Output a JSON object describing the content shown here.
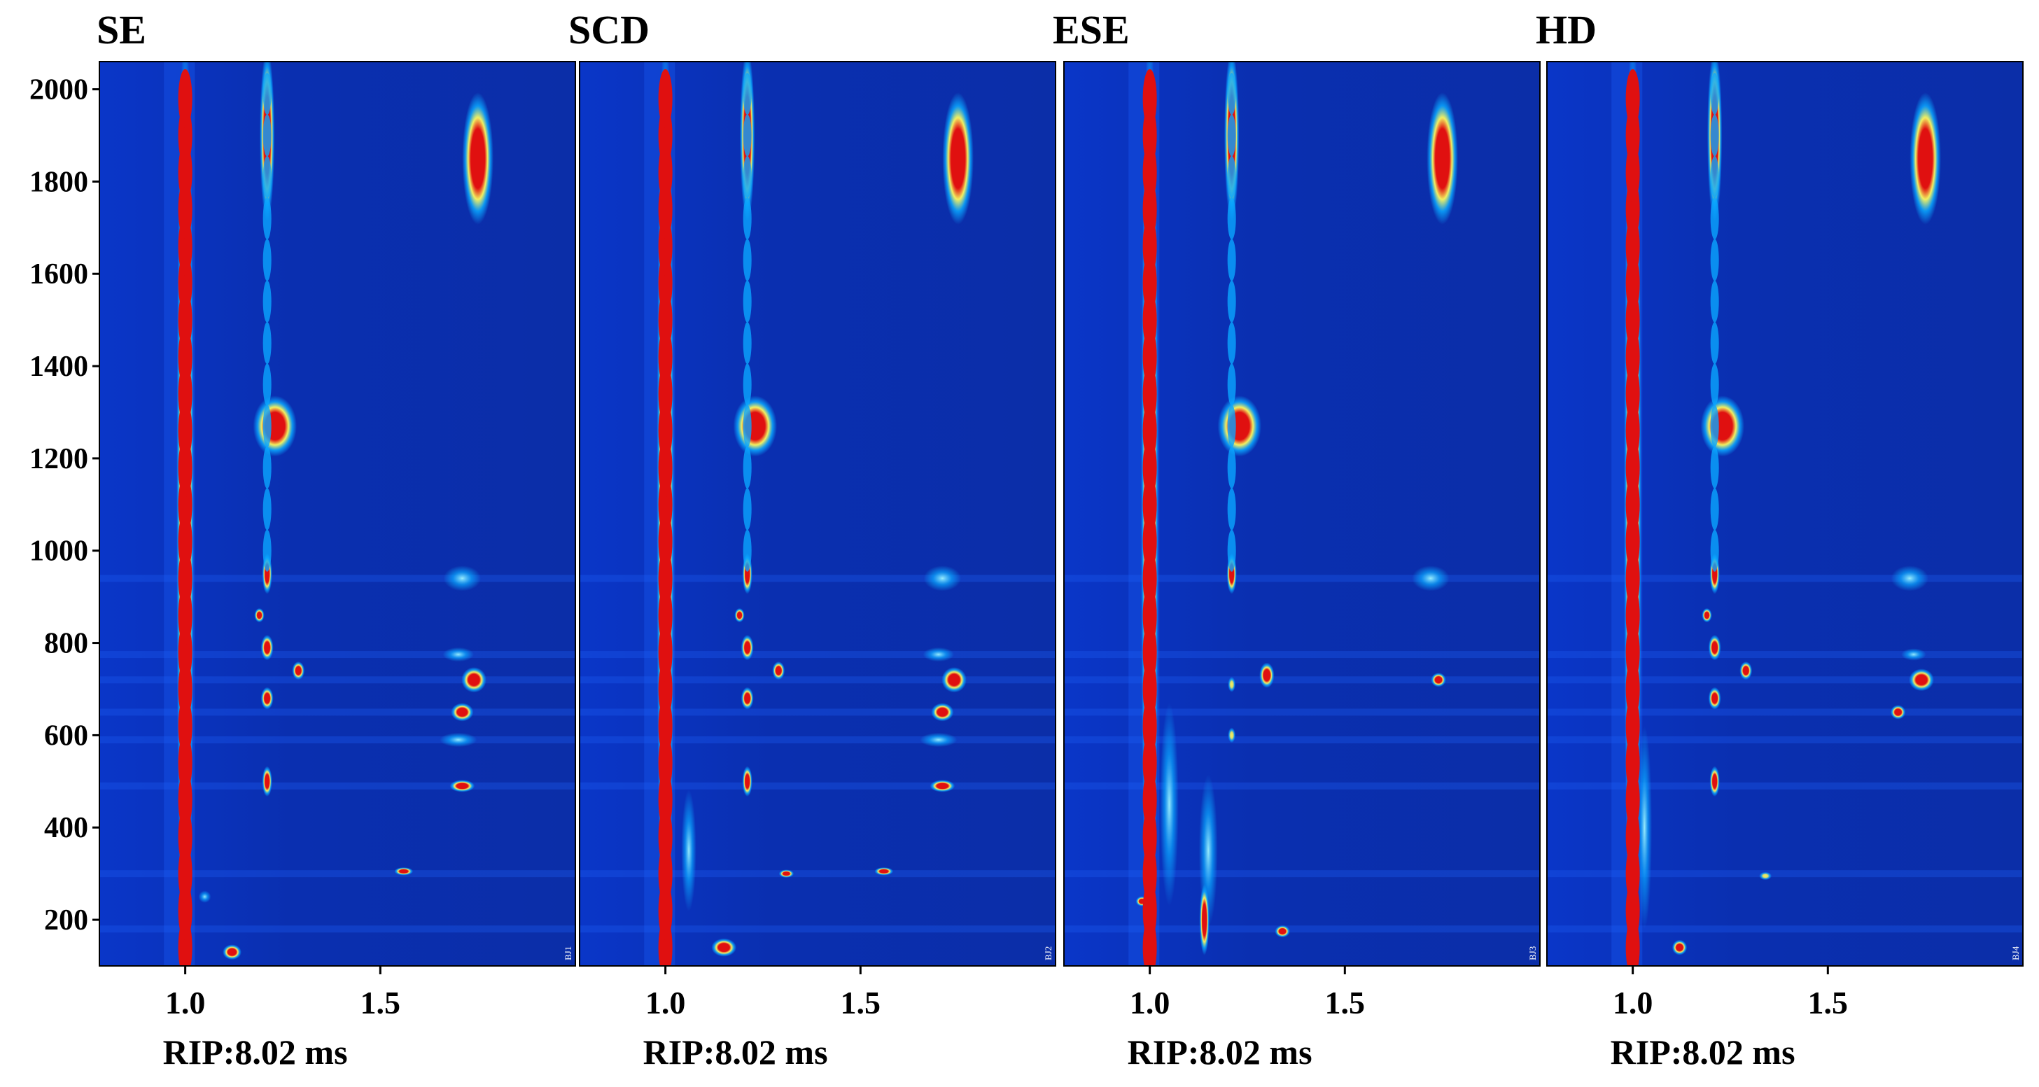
{
  "chart_data": {
    "type": "heatmap",
    "colors": {
      "background": "#0a2fb0",
      "low": "#0b2ad0",
      "mid": "#0aa6ff",
      "high": "#f2f060",
      "peak": "#e01010"
    },
    "ytick_values": [
      200,
      400,
      600,
      800,
      1000,
      1200,
      1400,
      1600,
      1800,
      2000
    ],
    "ytick_labels": [
      "200",
      "400",
      "600",
      "800",
      "1000",
      "1200",
      "1400",
      "1600",
      "1800",
      "2000"
    ],
    "xtick_values": [
      1.0,
      1.5
    ],
    "xtick_labels": [
      "1.0",
      "1.5"
    ],
    "ylim": [
      100,
      2060
    ],
    "xlim": [
      0.78,
      2.0
    ],
    "panels": [
      {
        "title": "SE",
        "xlabel": "RIP:8.02 ms",
        "tag": "BJ1",
        "blobs": [
          {
            "x": 1.0,
            "y": 1080,
            "rx": 0.014,
            "ry": 980,
            "level": 1.0
          },
          {
            "x": 1.21,
            "y": 1900,
            "rx": 0.012,
            "ry": 170,
            "level": 0.9
          },
          {
            "x": 1.75,
            "y": 1850,
            "rx": 0.025,
            "ry": 130,
            "level": 1.0
          },
          {
            "x": 1.23,
            "y": 1270,
            "rx": 0.035,
            "ry": 60,
            "level": 1.0
          },
          {
            "x": 1.71,
            "y": 940,
            "rx": 0.03,
            "ry": 25,
            "level": 0.55
          },
          {
            "x": 1.21,
            "y": 950,
            "rx": 0.008,
            "ry": 40,
            "level": 0.85
          },
          {
            "x": 1.21,
            "y": 790,
            "rx": 0.01,
            "ry": 25,
            "level": 0.85
          },
          {
            "x": 1.21,
            "y": 680,
            "rx": 0.01,
            "ry": 22,
            "level": 0.9
          },
          {
            "x": 1.74,
            "y": 720,
            "rx": 0.02,
            "ry": 25,
            "level": 0.95
          },
          {
            "x": 1.71,
            "y": 650,
            "rx": 0.018,
            "ry": 18,
            "level": 0.95
          },
          {
            "x": 1.7,
            "y": 775,
            "rx": 0.025,
            "ry": 14,
            "level": 0.5
          },
          {
            "x": 1.7,
            "y": 590,
            "rx": 0.03,
            "ry": 14,
            "level": 0.5
          },
          {
            "x": 1.71,
            "y": 490,
            "rx": 0.02,
            "ry": 12,
            "level": 0.95
          },
          {
            "x": 1.29,
            "y": 740,
            "rx": 0.01,
            "ry": 18,
            "level": 0.85
          },
          {
            "x": 1.19,
            "y": 860,
            "rx": 0.008,
            "ry": 14,
            "level": 0.85
          },
          {
            "x": 1.21,
            "y": 500,
            "rx": 0.008,
            "ry": 30,
            "level": 0.8
          },
          {
            "x": 1.56,
            "y": 305,
            "rx": 0.015,
            "ry": 8,
            "level": 0.8
          },
          {
            "x": 1.12,
            "y": 130,
            "rx": 0.015,
            "ry": 15,
            "level": 0.85
          },
          {
            "x": 1.05,
            "y": 250,
            "rx": 0.01,
            "ry": 12,
            "level": 0.5
          }
        ]
      },
      {
        "title": "SCD",
        "xlabel": "RIP:8.02 ms",
        "tag": "BJ2",
        "blobs": [
          {
            "x": 1.0,
            "y": 1080,
            "rx": 0.014,
            "ry": 980,
            "level": 1.0
          },
          {
            "x": 1.21,
            "y": 1900,
            "rx": 0.012,
            "ry": 170,
            "level": 0.9
          },
          {
            "x": 1.75,
            "y": 1850,
            "rx": 0.025,
            "ry": 130,
            "level": 1.0
          },
          {
            "x": 1.23,
            "y": 1270,
            "rx": 0.035,
            "ry": 60,
            "level": 1.0
          },
          {
            "x": 1.71,
            "y": 940,
            "rx": 0.03,
            "ry": 25,
            "level": 0.55
          },
          {
            "x": 1.21,
            "y": 950,
            "rx": 0.008,
            "ry": 40,
            "level": 0.85
          },
          {
            "x": 1.21,
            "y": 790,
            "rx": 0.01,
            "ry": 25,
            "level": 0.85
          },
          {
            "x": 1.21,
            "y": 680,
            "rx": 0.01,
            "ry": 22,
            "level": 0.9
          },
          {
            "x": 1.74,
            "y": 720,
            "rx": 0.02,
            "ry": 25,
            "level": 0.95
          },
          {
            "x": 1.71,
            "y": 650,
            "rx": 0.018,
            "ry": 18,
            "level": 0.95
          },
          {
            "x": 1.7,
            "y": 775,
            "rx": 0.025,
            "ry": 14,
            "level": 0.5
          },
          {
            "x": 1.7,
            "y": 590,
            "rx": 0.03,
            "ry": 14,
            "level": 0.5
          },
          {
            "x": 1.71,
            "y": 490,
            "rx": 0.02,
            "ry": 12,
            "level": 0.95
          },
          {
            "x": 1.29,
            "y": 740,
            "rx": 0.01,
            "ry": 18,
            "level": 0.85
          },
          {
            "x": 1.19,
            "y": 860,
            "rx": 0.008,
            "ry": 14,
            "level": 0.85
          },
          {
            "x": 1.21,
            "y": 500,
            "rx": 0.008,
            "ry": 30,
            "level": 0.8
          },
          {
            "x": 1.56,
            "y": 305,
            "rx": 0.015,
            "ry": 8,
            "level": 0.8
          },
          {
            "x": 1.15,
            "y": 140,
            "rx": 0.02,
            "ry": 18,
            "level": 1.0
          },
          {
            "x": 1.06,
            "y": 350,
            "rx": 0.012,
            "ry": 120,
            "level": 0.5
          },
          {
            "x": 1.31,
            "y": 300,
            "rx": 0.012,
            "ry": 8,
            "level": 0.8
          }
        ]
      },
      {
        "title": "ESE",
        "xlabel": "RIP:8.02 ms",
        "tag": "BJ3",
        "blobs": [
          {
            "x": 1.0,
            "y": 1080,
            "rx": 0.014,
            "ry": 980,
            "level": 1.0
          },
          {
            "x": 1.21,
            "y": 1900,
            "rx": 0.012,
            "ry": 170,
            "level": 0.9
          },
          {
            "x": 1.75,
            "y": 1850,
            "rx": 0.025,
            "ry": 130,
            "level": 1.0
          },
          {
            "x": 1.23,
            "y": 1270,
            "rx": 0.035,
            "ry": 60,
            "level": 1.0
          },
          {
            "x": 1.72,
            "y": 940,
            "rx": 0.03,
            "ry": 25,
            "level": 0.55
          },
          {
            "x": 1.21,
            "y": 950,
            "rx": 0.008,
            "ry": 40,
            "level": 0.85
          },
          {
            "x": 1.3,
            "y": 730,
            "rx": 0.012,
            "ry": 25,
            "level": 0.9
          },
          {
            "x": 1.74,
            "y": 720,
            "rx": 0.012,
            "ry": 14,
            "level": 0.9
          },
          {
            "x": 1.21,
            "y": 710,
            "rx": 0.006,
            "ry": 15,
            "level": 0.7
          },
          {
            "x": 1.21,
            "y": 600,
            "rx": 0.006,
            "ry": 15,
            "level": 0.7
          },
          {
            "x": 1.05,
            "y": 450,
            "rx": 0.015,
            "ry": 200,
            "level": 0.5
          },
          {
            "x": 1.15,
            "y": 350,
            "rx": 0.015,
            "ry": 150,
            "level": 0.45
          },
          {
            "x": 1.14,
            "y": 200,
            "rx": 0.008,
            "ry": 70,
            "level": 1.0
          },
          {
            "x": 1.34,
            "y": 175,
            "rx": 0.012,
            "ry": 12,
            "level": 0.85
          },
          {
            "x": 0.98,
            "y": 240,
            "rx": 0.01,
            "ry": 10,
            "level": 0.9
          }
        ]
      },
      {
        "title": "HD",
        "xlabel": "RIP:8.02 ms",
        "tag": "BJ4",
        "blobs": [
          {
            "x": 1.0,
            "y": 1080,
            "rx": 0.014,
            "ry": 980,
            "level": 1.0
          },
          {
            "x": 1.21,
            "y": 1900,
            "rx": 0.012,
            "ry": 170,
            "level": 0.9
          },
          {
            "x": 1.75,
            "y": 1850,
            "rx": 0.025,
            "ry": 130,
            "level": 1.0
          },
          {
            "x": 1.23,
            "y": 1270,
            "rx": 0.035,
            "ry": 60,
            "level": 1.0
          },
          {
            "x": 1.71,
            "y": 940,
            "rx": 0.03,
            "ry": 25,
            "level": 0.55
          },
          {
            "x": 1.21,
            "y": 950,
            "rx": 0.008,
            "ry": 40,
            "level": 0.85
          },
          {
            "x": 1.21,
            "y": 790,
            "rx": 0.01,
            "ry": 25,
            "level": 0.85
          },
          {
            "x": 1.21,
            "y": 680,
            "rx": 0.01,
            "ry": 22,
            "level": 0.9
          },
          {
            "x": 1.74,
            "y": 720,
            "rx": 0.02,
            "ry": 22,
            "level": 0.95
          },
          {
            "x": 1.68,
            "y": 650,
            "rx": 0.012,
            "ry": 14,
            "level": 0.85
          },
          {
            "x": 1.72,
            "y": 775,
            "rx": 0.02,
            "ry": 12,
            "level": 0.45
          },
          {
            "x": 1.29,
            "y": 740,
            "rx": 0.01,
            "ry": 18,
            "level": 0.85
          },
          {
            "x": 1.19,
            "y": 860,
            "rx": 0.008,
            "ry": 14,
            "level": 0.85
          },
          {
            "x": 1.21,
            "y": 500,
            "rx": 0.008,
            "ry": 30,
            "level": 0.8
          },
          {
            "x": 1.03,
            "y": 400,
            "rx": 0.012,
            "ry": 200,
            "level": 0.5
          },
          {
            "x": 1.12,
            "y": 140,
            "rx": 0.012,
            "ry": 15,
            "level": 0.9
          },
          {
            "x": 1.34,
            "y": 295,
            "rx": 0.01,
            "ry": 8,
            "level": 0.75
          }
        ]
      }
    ]
  }
}
